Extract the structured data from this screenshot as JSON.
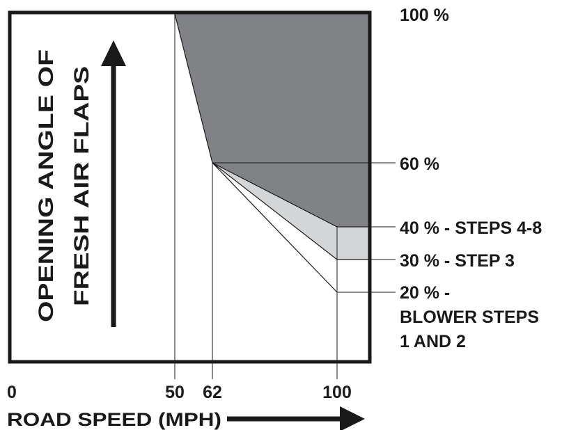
{
  "diagram": {
    "y_labels": {
      "p100": "100 %",
      "p60": "60 %",
      "p40": "40 % - STEPS 4-8",
      "p30": "30 % - STEP 3",
      "p20_line1": "20 % -",
      "p20_line2": "BLOWER STEPS",
      "p20_line3": "1 AND 2"
    },
    "x_labels": {
      "zero": "0",
      "fifty": "50",
      "sixtytwo": "62",
      "hundred": "100"
    },
    "x_axis_title": "ROAD SPEED (MPH)",
    "y_axis_title_line1": "OPENING ANGLE OF",
    "y_axis_title_line2": "FRESH AIR FLAPS",
    "colors": {
      "frame": "#1a1a1a",
      "dark_fill": "#808285",
      "light_fill": "#d4d5d6",
      "background": "#ffffff"
    },
    "curves": [
      {
        "speed": [
          50,
          62,
          100
        ],
        "opening_pct": [
          100,
          60,
          40
        ]
      },
      {
        "speed": [
          62,
          100
        ],
        "opening_pct": [
          60,
          30
        ]
      },
      {
        "speed": [
          62,
          100
        ],
        "opening_pct": [
          60,
          20
        ]
      }
    ]
  }
}
